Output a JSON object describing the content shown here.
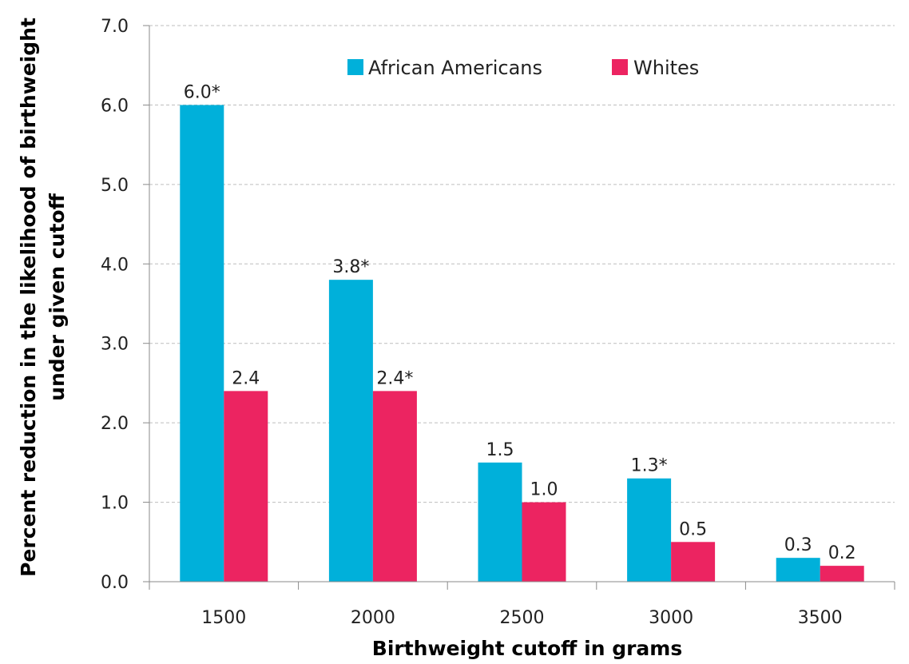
{
  "chart_data": {
    "type": "bar",
    "categories": [
      "1500",
      "2000",
      "2500",
      "3000",
      "3500"
    ],
    "series": [
      {
        "name": "African Americans",
        "color": "#00b0da",
        "values": [
          6.0,
          3.8,
          1.5,
          1.3,
          0.3
        ],
        "labels": [
          "6.0*",
          "3.8*",
          "1.5",
          "1.3*",
          "0.3"
        ]
      },
      {
        "name": "Whites",
        "color": "#ec2461",
        "values": [
          2.4,
          2.4,
          1.0,
          0.5,
          0.2
        ],
        "labels": [
          "2.4",
          "2.4*",
          "1.0",
          "0.5",
          "0.2"
        ]
      }
    ],
    "xlabel": "Birthweight cutoff in grams",
    "ylabel_lines": [
      "Percent reduction in the likelihood of birthweight",
      "under given cutoff"
    ],
    "ylim": [
      0,
      7
    ],
    "yticks": [
      "0.0",
      "1.0",
      "2.0",
      "3.0",
      "4.0",
      "5.0",
      "6.0",
      "7.0"
    ],
    "grid": true,
    "legend_position": "top-center"
  }
}
